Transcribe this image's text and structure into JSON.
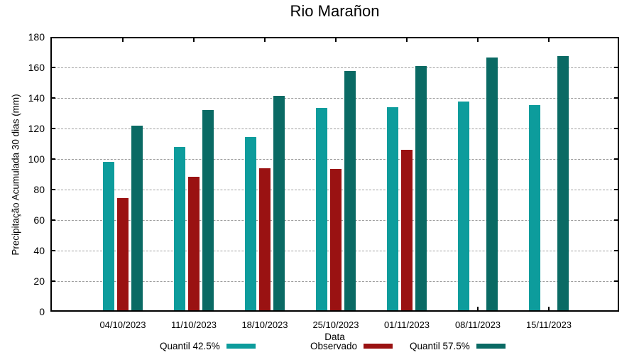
{
  "chart_data": {
    "type": "bar",
    "title": "Rio Marañon",
    "xlabel": "Data",
    "ylabel": "Precipitação Acumulada 30 dias (mm)",
    "ylim": [
      0,
      180
    ],
    "y_ticks": [
      0,
      20,
      40,
      60,
      80,
      100,
      120,
      140,
      160,
      180
    ],
    "grid": "horizontal-dashed",
    "legend_position": "bottom",
    "categories": [
      "04/10/2023",
      "11/10/2023",
      "18/10/2023",
      "25/10/2023",
      "01/11/2023",
      "08/11/2023",
      "15/11/2023"
    ],
    "series": [
      {
        "name": "Quantil 42.5%",
        "slug": "quantil-42-5",
        "color": "#0d9c9c",
        "values": [
          98,
          108,
          114.5,
          133.5,
          134,
          137.5,
          135.5
        ]
      },
      {
        "name": "Observado",
        "slug": "observado",
        "color": "#9a1212",
        "values": [
          74.5,
          88.5,
          94,
          93.5,
          106,
          null,
          null
        ]
      },
      {
        "name": "Quantil 57.5%",
        "slug": "quantil-57-5",
        "color": "#0a6a64",
        "values": [
          122,
          132,
          141.5,
          157.5,
          161,
          166.5,
          167.5
        ]
      }
    ],
    "colors": {
      "background": "#ffffff",
      "frame": "#000000",
      "grid": "#9e9e9e",
      "text": "#000000"
    }
  }
}
